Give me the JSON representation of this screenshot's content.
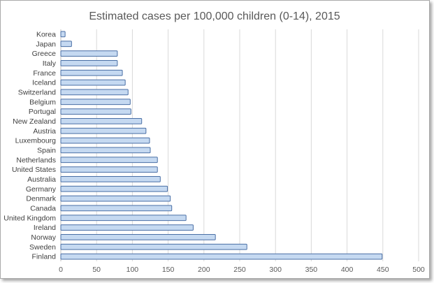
{
  "chart_data": {
    "type": "bar",
    "orientation": "horizontal",
    "title": "Estimated cases per 100,000 children (0-14), 2015",
    "xlabel": "",
    "ylabel": "",
    "xlim": [
      0,
      500
    ],
    "xticks": [
      0,
      50,
      100,
      150,
      200,
      250,
      300,
      350,
      400,
      450,
      500
    ],
    "grid": true,
    "legend": "none",
    "bar_color": "#c5d9f1",
    "bar_edge_color": "#4a6fa5",
    "categories": [
      "Korea",
      "Japan",
      "Greece",
      "Italy",
      "France",
      "Iceland",
      "Switzerland",
      "Belgium",
      "Portugal",
      "New Zealand",
      "Austria",
      "Luxembourg",
      "Spain",
      "Netherlands",
      "United States",
      "Australia",
      "Germany",
      "Denmark",
      "Canada",
      "United Kingdom",
      "Ireland",
      "Norway",
      "Sweden",
      "Finland"
    ],
    "values": [
      6,
      15,
      79,
      79,
      86,
      90,
      94,
      97,
      98,
      113,
      119,
      124,
      125,
      135,
      135,
      139,
      149,
      153,
      155,
      175,
      185,
      216,
      260,
      449
    ]
  }
}
